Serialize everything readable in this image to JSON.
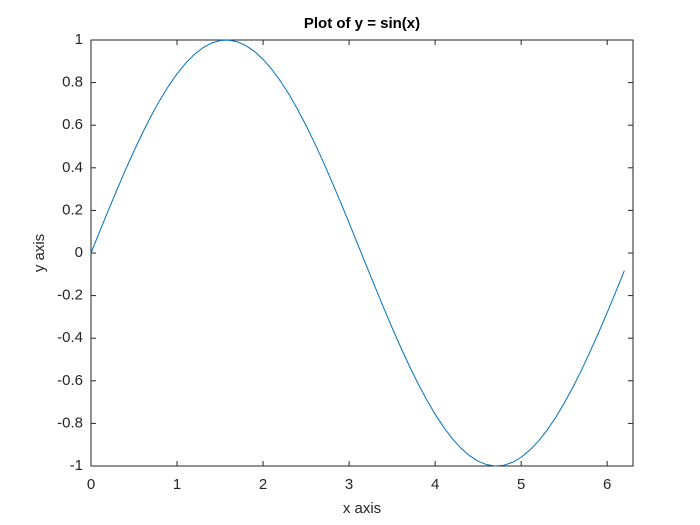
{
  "chart_data": {
    "type": "line",
    "title": "Plot of y = sin(x)",
    "x_label": "x axis",
    "y_label": "y axis",
    "x": [
      0,
      0.1,
      0.2,
      0.3,
      0.4,
      0.5,
      0.6,
      0.7,
      0.8,
      0.9,
      1.0,
      1.1,
      1.2,
      1.3,
      1.4,
      1.5,
      1.6,
      1.7,
      1.8,
      1.9,
      2.0,
      2.1,
      2.2,
      2.3,
      2.4,
      2.5,
      2.6,
      2.7,
      2.8,
      2.9,
      3.0,
      3.1,
      3.2,
      3.3,
      3.4,
      3.5,
      3.6,
      3.7,
      3.8,
      3.9,
      4.0,
      4.1,
      4.2,
      4.3,
      4.4,
      4.5,
      4.6,
      4.7,
      4.8,
      4.9,
      5.0,
      5.1,
      5.2,
      5.3,
      5.4,
      5.5,
      5.6,
      5.7,
      5.8,
      5.9,
      6.0,
      6.1,
      6.2
    ],
    "series": [
      {
        "color": "#0072bd",
        "values": [
          0,
          0.0998,
          0.1987,
          0.2955,
          0.3894,
          0.4794,
          0.5646,
          0.6442,
          0.7174,
          0.7833,
          0.8415,
          0.8912,
          0.932,
          0.9636,
          0.9854,
          0.9975,
          0.9996,
          0.9917,
          0.9738,
          0.9463,
          0.9093,
          0.8632,
          0.8085,
          0.7457,
          0.6755,
          0.5985,
          0.5155,
          0.4274,
          0.335,
          0.2392,
          0.1411,
          0.0416,
          -0.0584,
          -0.1577,
          -0.2555,
          -0.3508,
          -0.4425,
          -0.5298,
          -0.6119,
          -0.6878,
          -0.7568,
          -0.8183,
          -0.8716,
          -0.9162,
          -0.9516,
          -0.9775,
          -0.9937,
          -0.9999,
          -0.9962,
          -0.9825,
          -0.9589,
          -0.9258,
          -0.8835,
          -0.8323,
          -0.7728,
          -0.7055,
          -0.6313,
          -0.5507,
          -0.4646,
          -0.3739,
          -0.2794,
          -0.1822,
          -0.0831
        ]
      }
    ],
    "xlim": [
      0,
      6.3
    ],
    "xticks": [
      0,
      1,
      2,
      3,
      4,
      5,
      6
    ],
    "ylim": [
      -1,
      1
    ],
    "yticks": [
      -1,
      -0.8,
      -0.6,
      -0.4,
      -0.2,
      0,
      0.2,
      0.4,
      0.6,
      0.8,
      1
    ]
  }
}
